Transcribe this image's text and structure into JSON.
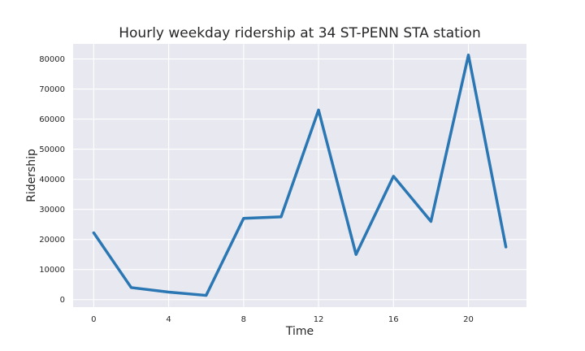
{
  "chart_data": {
    "type": "line",
    "title": "Hourly weekday ridership at 34 ST-PENN STA station",
    "xlabel": "Time",
    "ylabel": "Ridership",
    "x": [
      0,
      2,
      4,
      6,
      8,
      10,
      12,
      14,
      16,
      18,
      20,
      22
    ],
    "series": [
      {
        "values": [
          22200,
          4000,
          2500,
          1400,
          27000,
          27500,
          63000,
          15000,
          41000,
          26000,
          81300,
          17500
        ]
      }
    ],
    "xticks": [
      0,
      4,
      8,
      12,
      16,
      20
    ],
    "xtick_labels": [
      "0",
      "4",
      "8",
      "12",
      "16",
      "20"
    ],
    "yticks": [
      0,
      10000,
      20000,
      30000,
      40000,
      50000,
      60000,
      70000,
      80000
    ],
    "ytick_labels": [
      "0",
      "10000",
      "20000",
      "30000",
      "40000",
      "50000",
      "60000",
      "70000",
      "80000"
    ],
    "xlim": [
      -1.1,
      23.1
    ],
    "ylim": [
      -2500,
      85000
    ],
    "grid": true,
    "legend": "none",
    "colors": {
      "line": "#2a77b4",
      "background": "#e8e8f0",
      "grid": "#ffffff"
    }
  }
}
